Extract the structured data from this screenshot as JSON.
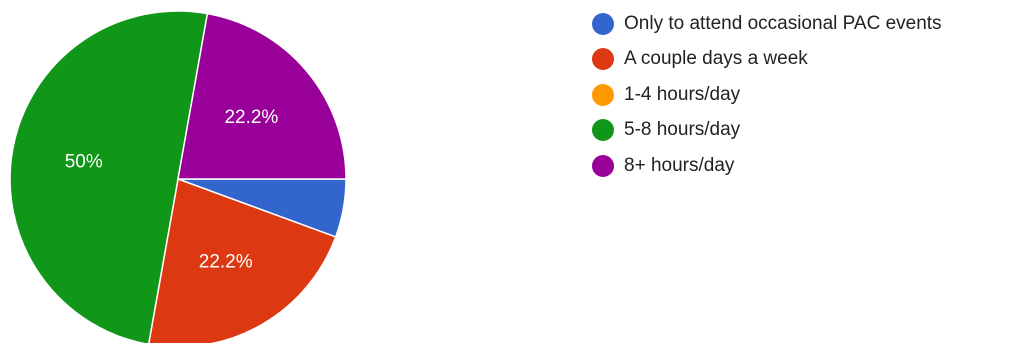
{
  "chart_data": {
    "type": "pie",
    "title": "",
    "legend_position": "right",
    "slices": [
      {
        "label": "Only to attend occasional PAC events",
        "value": 5.6,
        "display": "",
        "color": "#3366cc"
      },
      {
        "label": "A couple days a week",
        "value": 22.2,
        "display": "22.2%",
        "color": "#dc3912"
      },
      {
        "label": "1-4 hours/day",
        "value": 0,
        "display": "",
        "color": "#ff9900"
      },
      {
        "label": "5-8 hours/day",
        "value": 50,
        "display": "50%",
        "color": "#109618"
      },
      {
        "label": "8+ hours/day",
        "value": 22.2,
        "display": "22.2%",
        "color": "#990099"
      }
    ]
  }
}
